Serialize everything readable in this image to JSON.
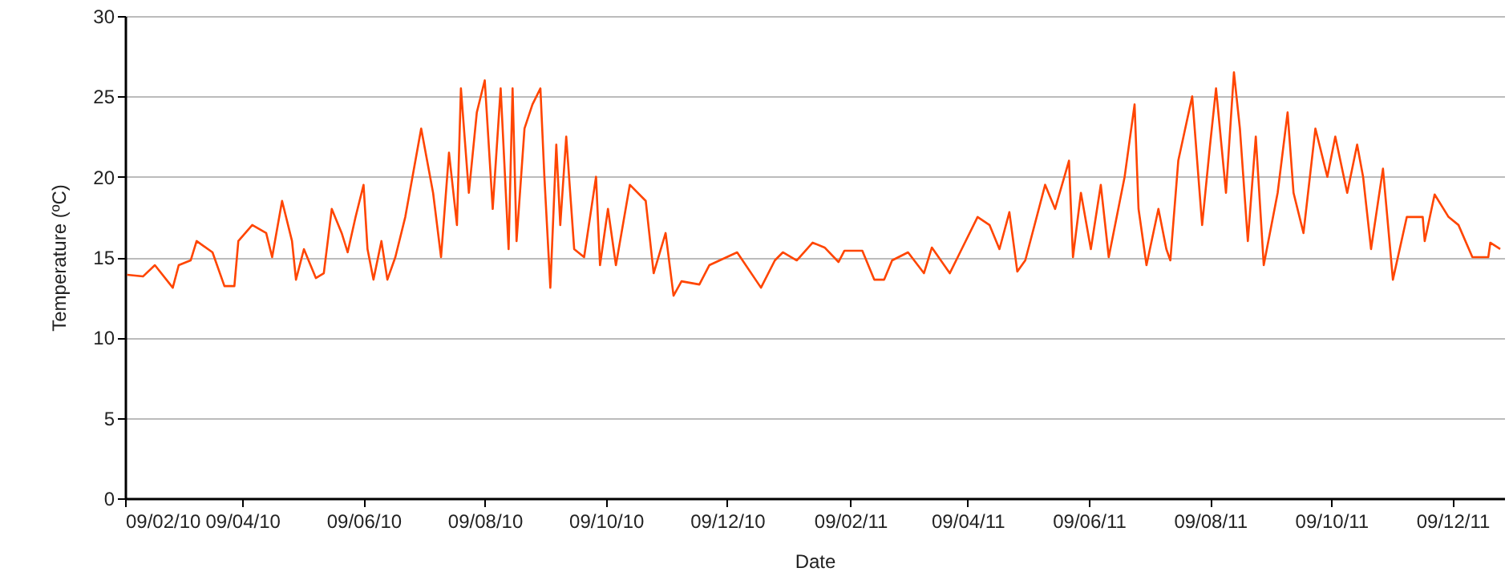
{
  "chart_data": {
    "type": "line",
    "xlabel": "Date",
    "ylabel": "Temperature (ºC)",
    "x": [
      "2010-02-10",
      "2010-02-18",
      "2010-02-24",
      "2010-03-05",
      "2010-03-08",
      "2010-03-14",
      "2010-03-17",
      "2010-03-25",
      "2010-03-31",
      "2010-04-05",
      "2010-04-07",
      "2010-04-14",
      "2010-04-21",
      "2010-04-24",
      "2010-04-29",
      "2010-05-04",
      "2010-05-06",
      "2010-05-10",
      "2010-05-16",
      "2010-05-20",
      "2010-05-24",
      "2010-05-29",
      "2010-06-01",
      "2010-06-05",
      "2010-06-09",
      "2010-06-11",
      "2010-06-14",
      "2010-06-18",
      "2010-06-21",
      "2010-06-25",
      "2010-06-30",
      "2010-07-08",
      "2010-07-14",
      "2010-07-18",
      "2010-07-22",
      "2010-07-26",
      "2010-07-28",
      "2010-08-01",
      "2010-08-05",
      "2010-08-09",
      "2010-08-13",
      "2010-08-17",
      "2010-08-21",
      "2010-08-23",
      "2010-08-25",
      "2010-08-29",
      "2010-09-02",
      "2010-09-06",
      "2010-09-08",
      "2010-09-11",
      "2010-09-14",
      "2010-09-16",
      "2010-09-19",
      "2010-09-23",
      "2010-09-28",
      "2010-10-04",
      "2010-10-06",
      "2010-10-10",
      "2010-10-14",
      "2010-10-21",
      "2010-10-29",
      "2010-11-02",
      "2010-11-08",
      "2010-11-12",
      "2010-11-16",
      "2010-11-25",
      "2010-11-30",
      "2010-12-14",
      "2010-12-26",
      "2011-01-02",
      "2011-01-06",
      "2011-01-13",
      "2011-01-21",
      "2011-01-27",
      "2011-02-03",
      "2011-02-06",
      "2011-02-15",
      "2011-02-21",
      "2011-02-26",
      "2011-03-02",
      "2011-03-10",
      "2011-03-18",
      "2011-03-22",
      "2011-03-31",
      "2011-04-06",
      "2011-04-14",
      "2011-04-20",
      "2011-04-25",
      "2011-04-30",
      "2011-05-04",
      "2011-05-08",
      "2011-05-18",
      "2011-05-23",
      "2011-05-30",
      "2011-06-01",
      "2011-06-05",
      "2011-06-10",
      "2011-06-15",
      "2011-06-19",
      "2011-06-27",
      "2011-07-02",
      "2011-07-04",
      "2011-07-08",
      "2011-07-14",
      "2011-07-18",
      "2011-07-20",
      "2011-07-24",
      "2011-07-31",
      "2011-08-05",
      "2011-08-09",
      "2011-08-12",
      "2011-08-17",
      "2011-08-21",
      "2011-08-24",
      "2011-08-28",
      "2011-09-01",
      "2011-09-05",
      "2011-09-12",
      "2011-09-17",
      "2011-09-20",
      "2011-09-25",
      "2011-10-01",
      "2011-10-07",
      "2011-10-11",
      "2011-10-17",
      "2011-10-22",
      "2011-10-25",
      "2011-10-29",
      "2011-11-04",
      "2011-11-09",
      "2011-11-16",
      "2011-11-24",
      "2011-11-25",
      "2011-11-30",
      "2011-12-07",
      "2011-12-12",
      "2011-12-19",
      "2011-12-27",
      "2011-12-28",
      "2012-01-02"
    ],
    "series": [
      {
        "color": "#ff4500",
        "values": [
          13.9,
          13.8,
          14.5,
          13.1,
          14.5,
          14.8,
          16.0,
          15.3,
          13.2,
          13.2,
          16.0,
          17.0,
          16.5,
          15.0,
          18.5,
          16.0,
          13.6,
          15.5,
          13.7,
          14.0,
          18.0,
          16.5,
          15.3,
          17.5,
          19.5,
          15.5,
          13.6,
          16.0,
          13.6,
          15.0,
          17.5,
          23.0,
          19.0,
          15.0,
          21.5,
          17.0,
          25.5,
          19.0,
          24.0,
          26.0,
          18.0,
          25.5,
          15.5,
          25.5,
          16.0,
          23.0,
          24.5,
          25.5,
          20.0,
          13.1,
          22.0,
          17.0,
          22.5,
          15.5,
          15.0,
          20.0,
          14.5,
          18.0,
          14.5,
          19.5,
          18.5,
          14.0,
          16.5,
          12.6,
          13.5,
          13.3,
          14.5,
          15.3,
          13.1,
          14.8,
          15.3,
          14.8,
          15.9,
          15.6,
          14.7,
          15.4,
          15.4,
          13.6,
          13.6,
          14.8,
          15.3,
          14.0,
          15.6,
          14.0,
          15.5,
          17.5,
          17.0,
          15.5,
          17.8,
          14.1,
          14.8,
          19.5,
          18.0,
          21.0,
          15.0,
          19.0,
          15.5,
          19.5,
          15.0,
          20.0,
          24.5,
          18.0,
          14.5,
          18.0,
          15.5,
          14.8,
          21.0,
          25.0,
          17.0,
          22.0,
          25.5,
          19.0,
          26.5,
          23.0,
          16.0,
          22.5,
          14.5,
          19.0,
          24.0,
          19.0,
          16.5,
          23.0,
          20.0,
          22.5,
          19.0,
          22.0,
          20.0,
          15.5,
          20.5,
          13.6,
          17.5,
          17.5,
          16.0,
          18.9,
          17.5,
          17.0,
          15.0,
          15.0,
          15.9,
          15.5
        ]
      }
    ],
    "xlim": [
      "2010-02-09",
      "2012-01-04"
    ],
    "xticks": [
      {
        "value": "2010-02-09",
        "label": "09/02/10"
      },
      {
        "value": "2010-04-09",
        "label": "09/04/10"
      },
      {
        "value": "2010-06-09",
        "label": "09/06/10"
      },
      {
        "value": "2010-08-09",
        "label": "09/08/10"
      },
      {
        "value": "2010-10-09",
        "label": "09/10/10"
      },
      {
        "value": "2010-12-09",
        "label": "09/12/10"
      },
      {
        "value": "2011-02-09",
        "label": "09/02/11"
      },
      {
        "value": "2011-04-09",
        "label": "09/04/11"
      },
      {
        "value": "2011-06-09",
        "label": "09/06/11"
      },
      {
        "value": "2011-08-09",
        "label": "09/08/11"
      },
      {
        "value": "2011-10-09",
        "label": "09/10/11"
      },
      {
        "value": "2011-12-09",
        "label": "09/12/11"
      }
    ],
    "ylim": [
      0,
      30
    ],
    "yticks": [
      0,
      5,
      10,
      15,
      20,
      25,
      30
    ],
    "grid": "y",
    "marker": "none",
    "line_style": "solid"
  }
}
